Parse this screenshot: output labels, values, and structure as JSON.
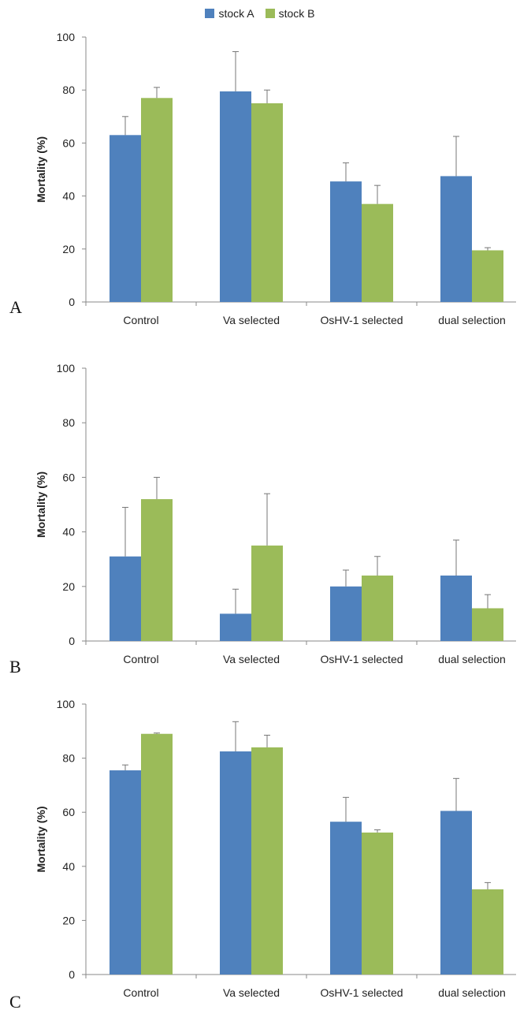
{
  "colors": {
    "stock_a": "#4f81bd",
    "stock_b": "#9bbb59",
    "axis": "#888888",
    "error": "#777777"
  },
  "legend": [
    {
      "name": "stock A",
      "color": "#4f81bd"
    },
    {
      "name": "stock B",
      "color": "#9bbb59"
    }
  ],
  "chart_data": [
    {
      "type": "bar",
      "panel_label": "A",
      "categories": [
        "Control",
        "Va selected",
        "OsHV-1 selected",
        "dual selection"
      ],
      "ylabel": "Mortality (%)",
      "ylim": [
        0,
        100
      ],
      "yticks": [
        0,
        20,
        40,
        60,
        80,
        100
      ],
      "series": [
        {
          "name": "stock A",
          "values": [
            63,
            79.5,
            45.5,
            47.5
          ],
          "error": [
            7,
            15,
            7,
            15
          ]
        },
        {
          "name": "stock B",
          "values": [
            77,
            75,
            37,
            19.5
          ],
          "error": [
            4,
            5,
            7,
            1
          ]
        }
      ]
    },
    {
      "type": "bar",
      "panel_label": "B",
      "categories": [
        "Control",
        "Va selected",
        "OsHV-1 selected",
        "dual selection"
      ],
      "ylabel": "Mortality (%)",
      "ylim": [
        0,
        100
      ],
      "yticks": [
        0,
        20,
        40,
        60,
        80,
        100
      ],
      "series": [
        {
          "name": "stock A",
          "values": [
            31,
            10,
            20,
            24
          ],
          "error": [
            18,
            9,
            6,
            13
          ]
        },
        {
          "name": "stock B",
          "values": [
            52,
            35,
            24,
            12
          ],
          "error": [
            8,
            19,
            7,
            5
          ]
        }
      ]
    },
    {
      "type": "bar",
      "panel_label": "C",
      "categories": [
        "Control",
        "Va selected",
        "OsHV-1 selected",
        "dual selection"
      ],
      "ylabel": "Mortality (%)",
      "ylim": [
        0,
        100
      ],
      "yticks": [
        0,
        20,
        40,
        60,
        80,
        100
      ],
      "series": [
        {
          "name": "stock A",
          "values": [
            75.5,
            82.5,
            56.5,
            60.5
          ],
          "error": [
            2,
            11,
            9,
            12
          ]
        },
        {
          "name": "stock B",
          "values": [
            89,
            84,
            52.5,
            31.5
          ],
          "error": [
            0.3,
            4.5,
            1,
            2.5
          ]
        }
      ]
    }
  ]
}
